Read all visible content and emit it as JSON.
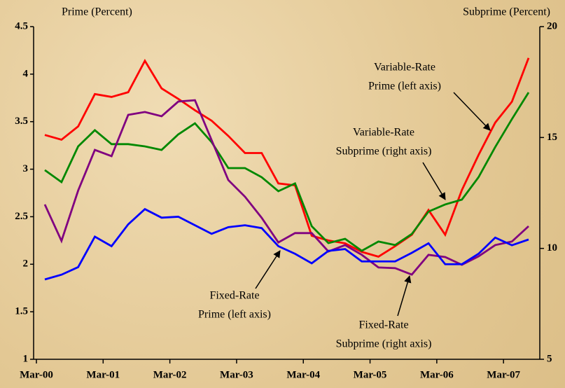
{
  "chart_data": {
    "type": "line",
    "y_label": "Prime (Percent)",
    "y2_label": "Subprime (Percent)",
    "categories": [
      "Mar-00",
      null,
      null,
      null,
      "Mar-01",
      null,
      null,
      null,
      "Mar-02",
      null,
      null,
      null,
      "Mar-03",
      null,
      null,
      null,
      "Mar-04",
      null,
      null,
      null,
      "Mar-05",
      null,
      null,
      null,
      "Mar-06",
      null,
      null,
      null,
      "Mar-07",
      null
    ],
    "ylim": [
      1,
      4.5
    ],
    "yticks": [
      1,
      1.5,
      2,
      2.5,
      3,
      3.5,
      4,
      4.5
    ],
    "y2lim": [
      5,
      20
    ],
    "y2ticks": [
      5,
      10,
      15,
      20
    ],
    "series": [
      {
        "name": "Variable-Rate Prime",
        "color": "#ff0000",
        "axis": "y",
        "values": [
          3.36,
          3.31,
          3.45,
          3.79,
          3.76,
          3.81,
          4.14,
          3.85,
          3.74,
          3.62,
          3.51,
          3.35,
          3.17,
          3.17,
          2.85,
          2.83,
          2.3,
          2.25,
          2.22,
          2.13,
          2.08,
          2.19,
          2.31,
          2.57,
          2.31,
          2.78,
          3.15,
          3.49,
          3.71,
          4.17
        ]
      },
      {
        "name": "Variable-Rate Subprime",
        "color": "#008800",
        "axis": "y2",
        "values": [
          13.53,
          12.99,
          14.6,
          15.33,
          14.7,
          14.7,
          14.6,
          14.44,
          15.14,
          15.64,
          14.79,
          13.62,
          13.62,
          13.21,
          12.58,
          12.93,
          11.0,
          10.24,
          10.43,
          9.89,
          10.31,
          10.15,
          10.65,
          11.66,
          11.98,
          12.2,
          13.21,
          14.57,
          15.83,
          17.03
        ]
      },
      {
        "name": "Fixed-Rate Subprime",
        "color": "#800080",
        "axis": "y2",
        "values": [
          11.98,
          10.34,
          12.61,
          14.44,
          14.16,
          16.02,
          16.15,
          15.96,
          16.62,
          16.68,
          14.88,
          13.08,
          12.33,
          11.38,
          10.27,
          10.69,
          10.69,
          9.86,
          10.15,
          9.71,
          9.14,
          9.11,
          8.82,
          9.71,
          9.61,
          9.26,
          9.64,
          10.15,
          10.31,
          11.0
        ]
      },
      {
        "name": "Fixed-Rate Prime",
        "color": "#0000ff",
        "axis": "y",
        "values": [
          1.84,
          1.89,
          1.97,
          2.29,
          2.19,
          2.42,
          2.58,
          2.49,
          2.5,
          2.41,
          2.32,
          2.39,
          2.41,
          2.38,
          2.19,
          2.11,
          2.01,
          2.14,
          2.16,
          2.03,
          2.03,
          2.03,
          2.12,
          2.22,
          2.0,
          2.0,
          2.11,
          2.28,
          2.2,
          2.26
        ]
      }
    ],
    "annotations": [
      [
        "Variable-Rate",
        "Prime (left axis)"
      ],
      [
        "Variable-Rate",
        "Subprime (right axis)"
      ],
      [
        "Fixed-Rate",
        "Prime (left axis)"
      ],
      [
        "Fixed-Rate",
        "Subprime (right axis)"
      ]
    ]
  }
}
